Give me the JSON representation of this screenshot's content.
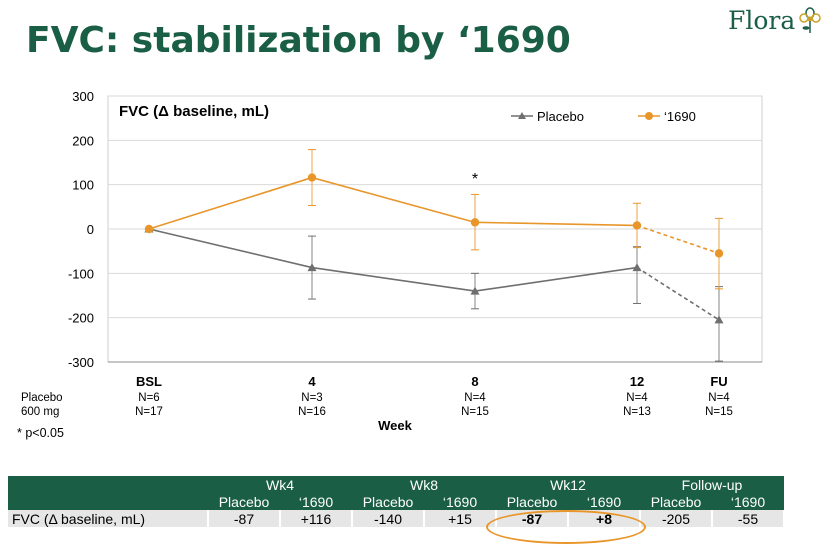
{
  "page": {
    "title": "FVC: stabilization by ‘1690",
    "logo_text": "Flora"
  },
  "chart_data": {
    "type": "line",
    "title": "FVC (Δ baseline, mL)",
    "xlabel": "Week",
    "ylabel": "",
    "ylim": [
      -300,
      300
    ],
    "yticks": [
      300,
      200,
      100,
      0,
      -100,
      -200,
      -300
    ],
    "ytick_labels": [
      "300",
      "200",
      "100",
      "0",
      "-100",
      "-200",
      "-300"
    ],
    "categories": [
      "BSL",
      "4",
      "8",
      "12",
      "FU"
    ],
    "series": [
      {
        "name": "Placebo",
        "color": "#6f6f6f",
        "marker": "triangle",
        "values": [
          0,
          -87,
          -140,
          -87,
          -205
        ],
        "err_low": [
          0,
          -158,
          -180,
          -168,
          -298
        ],
        "err_high": [
          0,
          -16,
          -100,
          -40,
          -130
        ],
        "n_labels": [
          "N=6",
          "N=3",
          "N=4",
          "N=4",
          "N=4"
        ]
      },
      {
        "name": "‘1690",
        "color": "#e8962a",
        "marker": "circle",
        "values": [
          0,
          116,
          15,
          8,
          -55
        ],
        "err_low": [
          0,
          53,
          -47,
          -42,
          -135
        ],
        "err_high": [
          0,
          179,
          78,
          58,
          24
        ],
        "n_labels": [
          "N=17",
          "N=16",
          "N=15",
          "N=13",
          "N=15"
        ]
      }
    ],
    "dashed_last_segment": true,
    "annotations": [
      {
        "text": "*",
        "category": "8"
      }
    ],
    "row_labels": {
      "placebo": "Placebo",
      "dose": "600 mg"
    },
    "footnote": "* p<0.05"
  },
  "table": {
    "groups": [
      "Wk4",
      "Wk8",
      "Wk12",
      "Follow-up"
    ],
    "subheaders": [
      "Placebo",
      "‘1690",
      "Placebo",
      "‘1690",
      "Placebo",
      "‘1690",
      "Placebo",
      "‘1690"
    ],
    "row_label": "FVC (Δ baseline, mL)",
    "values": [
      "-87",
      "+116",
      "-140",
      "+15",
      "-87",
      "+8",
      "-205",
      "-55"
    ]
  },
  "colors": {
    "brand": "#1b5e46",
    "accent": "#e8962a",
    "placebo": "#6f6f6f"
  }
}
